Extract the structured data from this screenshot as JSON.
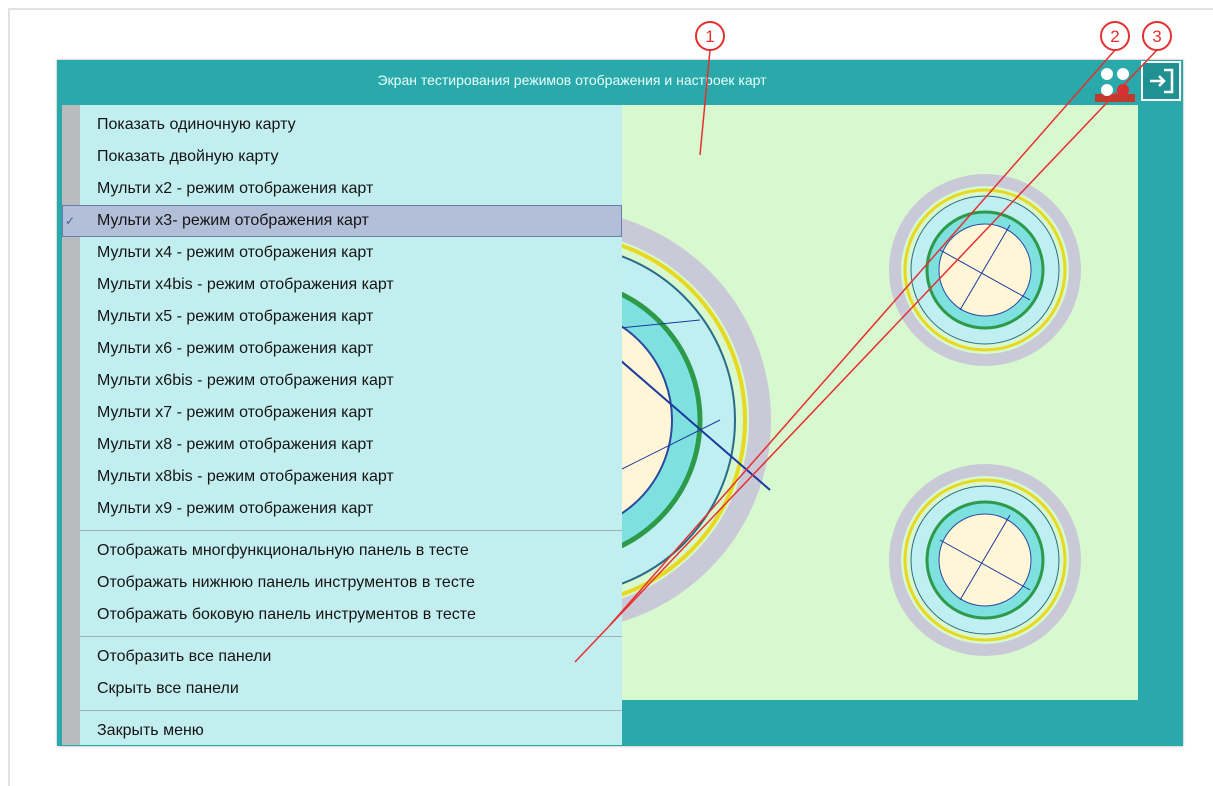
{
  "header": {
    "title": "Экран тестирования режимов отображения и настроек карт"
  },
  "menu": {
    "groups": [
      [
        {
          "label": "Показать одиночную карту"
        },
        {
          "label": "Показать двойную карту"
        },
        {
          "label": "Мульти х2 - режим отображения карт"
        },
        {
          "label": "Мульти х3- режим отображения карт",
          "checked": true
        },
        {
          "label": "Мульти х4 - режим отображения карт"
        },
        {
          "label": "Мульти х4bis - режим отображения карт"
        },
        {
          "label": "Мульти х5 - режим отображения карт"
        },
        {
          "label": "Мульти х6 - режим отображения карт"
        },
        {
          "label": "Мульти х6bis - режим отображения карт"
        },
        {
          "label": "Мульти х7 - режим отображения карт"
        },
        {
          "label": "Мульти х8 - режим отображения карт"
        },
        {
          "label": "Мульти х8bis - режим отображения карт"
        },
        {
          "label": "Мульти х9 - режим отображения карт"
        }
      ],
      [
        {
          "label": "Отображать многфункциональную панель в тесте"
        },
        {
          "label": "Отображать нижнюю панель инструментов в тесте"
        },
        {
          "label": "Отображать боковую панель инструментов в тесте"
        }
      ],
      [
        {
          "label": "Отобразить все панели"
        },
        {
          "label": "Скрыть все панели"
        }
      ],
      [
        {
          "label": "Закрыть меню"
        }
      ]
    ]
  },
  "annotations": [
    "1",
    "2",
    "3"
  ]
}
